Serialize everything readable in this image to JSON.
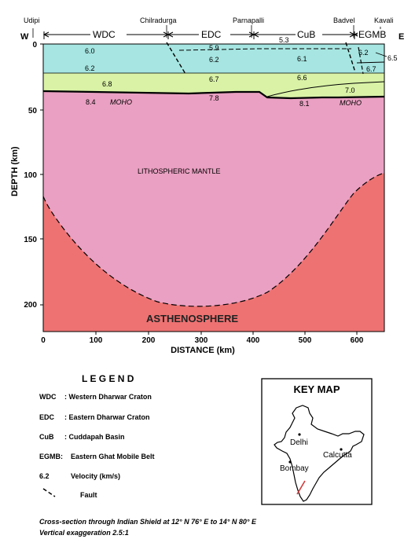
{
  "cross_section": {
    "top_places": [
      "Udipi",
      "Chilradurga",
      "Parnapalli",
      "Badvel",
      "Kavali"
    ],
    "west": "W",
    "east": "E",
    "provinces": [
      "WDC",
      "EDC",
      "CuB",
      "EGMB"
    ],
    "velocities": [
      "6.0",
      "6.2",
      "6.8",
      "8.4",
      "5.9",
      "6.2",
      "6.7",
      "7.8",
      "5.3",
      "6.1",
      "6.6",
      "8.1",
      "6.2",
      "6.7",
      "7.0",
      "6.5"
    ],
    "moho": "MOHO",
    "layer_names": {
      "mantle": "LITHOSPHERIC MANTLE",
      "asthenosphere": "ASTHENOSPHERE"
    },
    "y_axis": {
      "label": "DEPTH (km)",
      "ticks": [
        "0",
        "50",
        "100",
        "150",
        "200"
      ]
    },
    "x_axis": {
      "label": "DISTANCE (km)",
      "ticks": [
        "0",
        "100",
        "200",
        "300",
        "400",
        "500",
        "600"
      ]
    },
    "colors": {
      "upper_crust": "#A6E5E1",
      "lower_crust": "#D9F2A6",
      "mantle": "#EAA0C2",
      "asthenosphere": "#EE7272"
    }
  },
  "legend": {
    "title": "L E G E N D",
    "items": [
      {
        "abbr": "WDC",
        "text": ": Western Dharwar Craton"
      },
      {
        "abbr": "EDC",
        "text": ": Eastern Dharwar Craton"
      },
      {
        "abbr": "CuB",
        "text": ": Cuddapah Basin"
      },
      {
        "abbr": "EGMB:",
        "text": "Eastern Ghat Mobile Belt"
      },
      {
        "abbr": "6.2",
        "text": "Velocity (km/s)"
      },
      {
        "abbr": "",
        "text": "Fault"
      }
    ]
  },
  "key_map": {
    "title": "KEY MAP",
    "cities": [
      "Delhi",
      "Calcutta",
      "Bombay"
    ]
  },
  "caption": [
    "Cross-section through Indian Shield at 12° N 76° E to 14° N 80° E",
    "Vertical exaggeration 2.5:1"
  ]
}
